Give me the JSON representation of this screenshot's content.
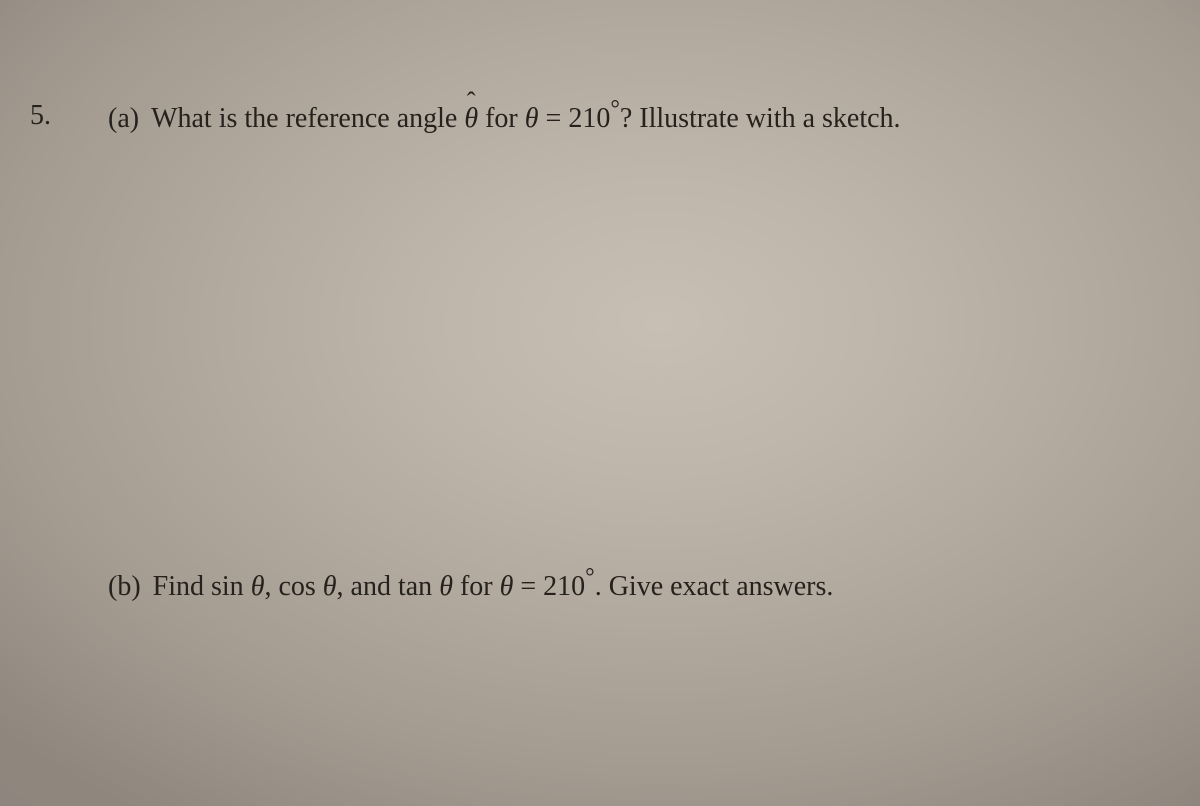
{
  "problem": {
    "number": "5.",
    "parts": {
      "a": {
        "label": "(a)",
        "pre": "What is the reference angle ",
        "theta_hat": "θ",
        "mid": " for ",
        "theta": "θ",
        "eq": " = 210",
        "deg": "°",
        "post": "? Illustrate with a sketch."
      },
      "b": {
        "label": "(b)",
        "pre": "Find sin ",
        "t1": "θ",
        "c1": ", cos ",
        "t2": "θ",
        "c2": ", and tan ",
        "t3": "θ",
        "mid": " for ",
        "t4": "θ",
        "eq": " = 210",
        "deg": "°",
        "post": ". Give exact answers."
      }
    }
  },
  "style": {
    "text_color": "#26211c",
    "font_family": "Times New Roman",
    "font_size_pt": 21,
    "background_gradient": [
      "#c8bfb4",
      "#bfb6ab",
      "#b2a99e",
      "#a39a90",
      "#8f877e"
    ]
  }
}
